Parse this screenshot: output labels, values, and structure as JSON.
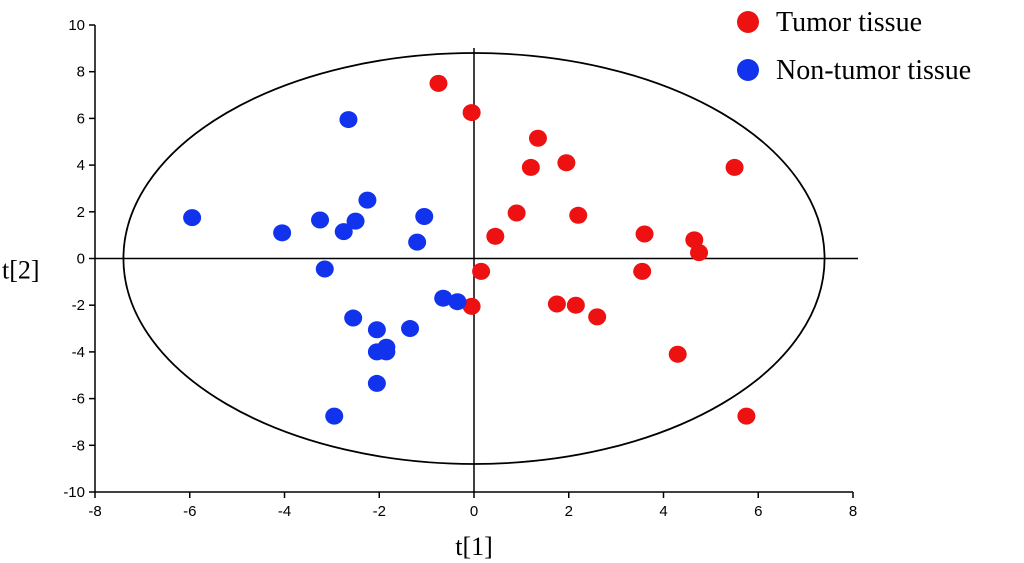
{
  "chart_data": {
    "type": "scatter",
    "xlabel": "t[1]",
    "ylabel": "t[2]",
    "xlim": [
      -8,
      8
    ],
    "ylim": [
      -10,
      10
    ],
    "x_ticks": [
      -8,
      -6,
      -4,
      -2,
      0,
      2,
      4,
      6,
      8
    ],
    "y_ticks": [
      -10,
      -8,
      -6,
      -4,
      -2,
      0,
      2,
      4,
      6,
      8,
      10
    ],
    "grid": false,
    "legend_position": "top-right",
    "confidence_ellipse": {
      "rx": 7.4,
      "ry": 8.8,
      "center": [
        0,
        0
      ]
    },
    "series": [
      {
        "name": "Tumor tissue",
        "color": "#ee1111",
        "points": [
          [
            -0.75,
            7.5
          ],
          [
            -0.05,
            6.25
          ],
          [
            1.35,
            5.15
          ],
          [
            1.95,
            4.1
          ],
          [
            1.2,
            3.9
          ],
          [
            5.5,
            3.9
          ],
          [
            0.9,
            1.95
          ],
          [
            2.2,
            1.85
          ],
          [
            0.45,
            0.95
          ],
          [
            3.6,
            1.05
          ],
          [
            4.65,
            0.8
          ],
          [
            4.75,
            0.25
          ],
          [
            0.15,
            -0.55
          ],
          [
            3.55,
            -0.55
          ],
          [
            -0.05,
            -2.05
          ],
          [
            1.75,
            -1.95
          ],
          [
            2.15,
            -2.0
          ],
          [
            2.6,
            -2.5
          ],
          [
            4.3,
            -4.1
          ],
          [
            5.75,
            -6.75
          ]
        ]
      },
      {
        "name": "Non-tumor tissue",
        "color": "#1133ee",
        "points": [
          [
            -2.65,
            5.95
          ],
          [
            -2.25,
            2.5
          ],
          [
            -5.95,
            1.75
          ],
          [
            -3.25,
            1.65
          ],
          [
            -2.5,
            1.6
          ],
          [
            -2.75,
            1.15
          ],
          [
            -4.05,
            1.1
          ],
          [
            -1.05,
            1.8
          ],
          [
            -1.2,
            0.7
          ],
          [
            -3.15,
            -0.45
          ],
          [
            -0.65,
            -1.7
          ],
          [
            -0.35,
            -1.85
          ],
          [
            -2.55,
            -2.55
          ],
          [
            -2.05,
            -3.05
          ],
          [
            -1.35,
            -3.0
          ],
          [
            -1.85,
            -3.8
          ],
          [
            -2.05,
            -4.0
          ],
          [
            -1.85,
            -4.0
          ],
          [
            -2.05,
            -5.35
          ],
          [
            -2.95,
            -6.75
          ]
        ]
      }
    ]
  }
}
